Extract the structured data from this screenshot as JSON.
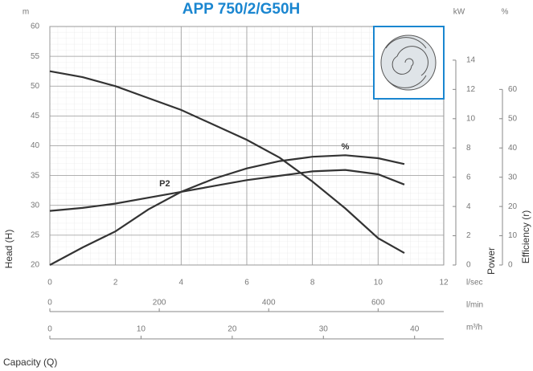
{
  "chart_data": {
    "type": "line",
    "title": "APP 750/2/G50H",
    "y_label": "Head (H)",
    "y2_label": "Power",
    "y3_label": "Efficiency (r)",
    "x_label": "Capacity (Q)",
    "y_unit": "m",
    "y2_unit": "kW",
    "y3_unit": "%",
    "xlim": [
      0,
      12
    ],
    "xticks": [
      0,
      2,
      4,
      6,
      8,
      10,
      12
    ],
    "x_unit": "l/sec",
    "x2lim": [
      0,
      720
    ],
    "x2ticks": [
      0,
      200,
      400,
      600
    ],
    "x2_unit": "l/min",
    "x3lim": [
      0,
      43.2
    ],
    "x3ticks": [
      0,
      10,
      20,
      30,
      40
    ],
    "x3_unit": "m³/h",
    "ylim": [
      20,
      60
    ],
    "yticks": [
      20,
      25,
      30,
      35,
      40,
      45,
      50,
      55,
      60
    ],
    "y2lim": [
      0,
      16.3
    ],
    "y2ticks": [
      0,
      2,
      4,
      6,
      8,
      10,
      12,
      14
    ],
    "y3lim": [
      0,
      81.5
    ],
    "y3ticks": [
      0,
      10,
      20,
      30,
      40,
      50,
      60
    ],
    "grid": true,
    "series": [
      {
        "color": "#333333",
        "axis": "y",
        "x": [
          0,
          1,
          2,
          3,
          4,
          5,
          6,
          7,
          8,
          9,
          10,
          10.8
        ],
        "values": [
          52.5,
          51.5,
          50,
          48,
          46,
          43.5,
          41,
          38,
          34,
          29.5,
          24.5,
          22
        ]
      },
      {
        "name": "P2",
        "color": "#333333",
        "axis": "y2",
        "x": [
          0,
          1,
          2,
          3,
          4,
          5,
          6,
          7,
          8,
          9,
          10,
          10.8
        ],
        "values": [
          3.7,
          3.9,
          4.2,
          4.6,
          5.0,
          5.4,
          5.8,
          6.1,
          6.4,
          6.5,
          6.2,
          5.5
        ]
      },
      {
        "name": "%",
        "color": "#333333",
        "axis": "y3",
        "x": [
          0,
          1,
          2,
          3,
          4,
          5,
          6,
          7,
          8,
          9,
          10,
          10.8
        ],
        "values": [
          0,
          6,
          11.5,
          19,
          25,
          29.5,
          33,
          35.5,
          37,
          37.5,
          36.5,
          34.5
        ]
      }
    ]
  }
}
